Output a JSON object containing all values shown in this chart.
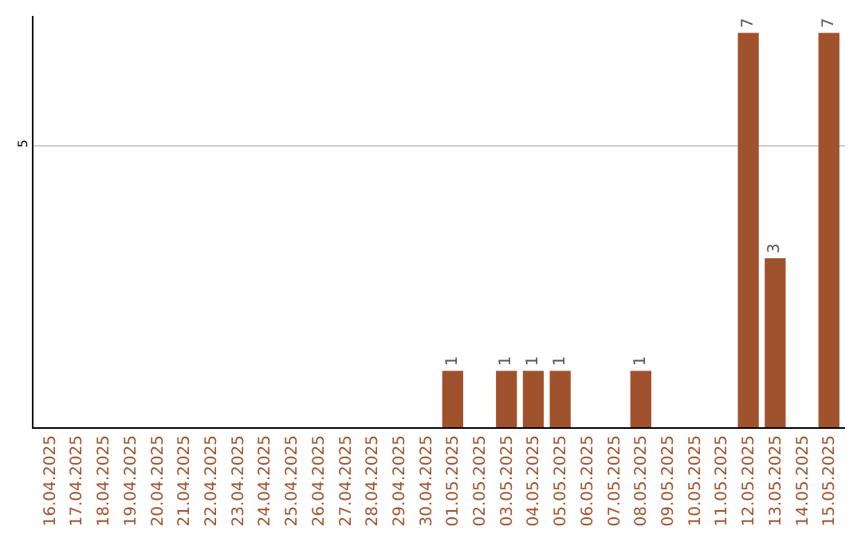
{
  "chart_data": {
    "type": "bar",
    "ylim": [
      0,
      7.3
    ],
    "yticks": [
      5
    ],
    "grid": "y",
    "categories": [
      "16.04.2025",
      "17.04.2025",
      "18.04.2025",
      "19.04.2025",
      "20.04.2025",
      "21.04.2025",
      "22.04.2025",
      "23.04.2025",
      "24.04.2025",
      "25.04.2025",
      "26.04.2025",
      "27.04.2025",
      "28.04.2025",
      "29.04.2025",
      "30.04.2025",
      "01.05.2025",
      "02.05.2025",
      "03.05.2025",
      "04.05.2025",
      "05.05.2025",
      "06.05.2025",
      "07.05.2025",
      "08.05.2025",
      "09.05.2025",
      "10.05.2025",
      "11.05.2025",
      "12.05.2025",
      "13.05.2025",
      "14.05.2025",
      "15.05.2025"
    ],
    "values": [
      null,
      null,
      null,
      null,
      null,
      null,
      null,
      null,
      null,
      null,
      null,
      null,
      null,
      null,
      null,
      1,
      null,
      1,
      1,
      1,
      null,
      null,
      1,
      null,
      null,
      null,
      7,
      3,
      null,
      7
    ],
    "data_labels": true,
    "color": "#a0522d",
    "legend": false
  }
}
